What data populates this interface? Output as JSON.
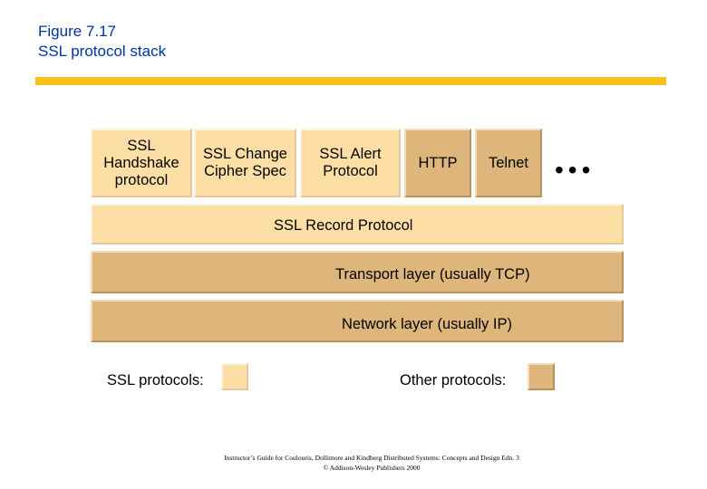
{
  "header": {
    "figure_number": "Figure 7.17",
    "figure_title": "SSL protocol stack"
  },
  "colors": {
    "ssl_protocol": "#fddfa6",
    "other_protocol": "#deb67c",
    "title_text": "#0033a0",
    "rule": "#f7c319"
  },
  "top_row": [
    {
      "label": "SSL\nHandshake\nprotocol",
      "kind": "ssl"
    },
    {
      "label": "SSL Change\nCipher Spec",
      "kind": "ssl"
    },
    {
      "label": "SSL Alert\nProtocol",
      "kind": "ssl"
    },
    {
      "label": "HTTP",
      "kind": "other"
    },
    {
      "label": "Telnet",
      "kind": "other"
    }
  ],
  "ellipsis": "•••",
  "layers": {
    "record": "SSL Record Protocol",
    "transport": "Transport layer (usually TCP)",
    "network": "Network layer (usually IP)"
  },
  "legend": {
    "ssl_label": "SSL protocols:",
    "other_label": "Other protocols:"
  },
  "footer": {
    "line1": "Instructor’s Guide for Coulouris, Dollimore and Kindberg Distributed Systems: Concepts and Design Edn. 3",
    "line2": "© Addison-Wesley Publishers 2000"
  }
}
